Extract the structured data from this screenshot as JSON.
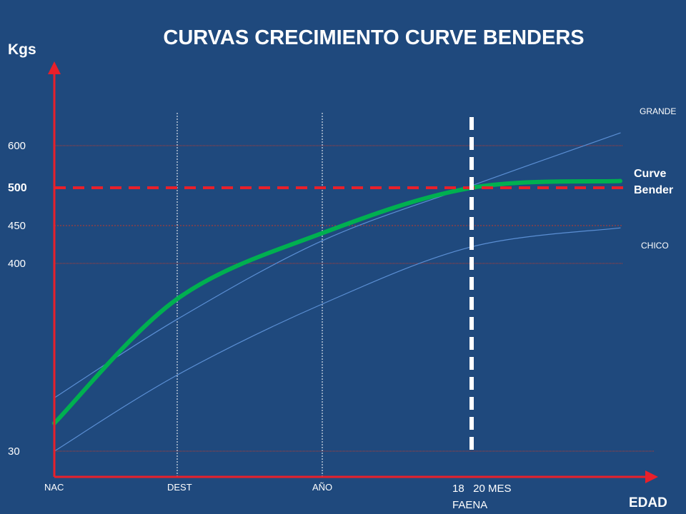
{
  "chart_data": {
    "type": "line",
    "title": "CURVAS CRECIMIENTO CURVE  BENDERS",
    "ylabel": "Kgs",
    "xlabel": "EDAD",
    "y_ticks": [
      {
        "value": 30,
        "label": "30"
      },
      {
        "value": 400,
        "label": "400"
      },
      {
        "value": 450,
        "label": "450"
      },
      {
        "value": 500,
        "label": "500"
      },
      {
        "value": 600,
        "label": "600"
      }
    ],
    "x_ticks": [
      {
        "id": "nac",
        "label": "NAC"
      },
      {
        "id": "dest",
        "label": "DEST"
      },
      {
        "id": "ano",
        "label": "AÑO"
      }
    ],
    "faena": {
      "months": "18   20 MES",
      "label": "FAENA"
    },
    "reference_line": {
      "value": 500,
      "color": "#e8202a",
      "style": "dashed"
    },
    "series": [
      {
        "name": "GRANDE",
        "color": "#5b8fd4",
        "points": [
          [
            0,
            135
          ],
          [
            1,
            290
          ],
          [
            2,
            430
          ],
          [
            3,
            505
          ],
          [
            4,
            633
          ]
        ]
      },
      {
        "name": "Curve\nBender",
        "color": "#00b050",
        "points": [
          [
            0,
            85
          ],
          [
            1,
            330
          ],
          [
            2,
            440
          ],
          [
            3,
            500
          ],
          [
            4,
            516
          ]
        ]
      },
      {
        "name": "CHICO",
        "color": "#5b8fd4",
        "points": [
          [
            0,
            30
          ],
          [
            1,
            180
          ],
          [
            2,
            320
          ],
          [
            3,
            422
          ],
          [
            4,
            447
          ]
        ]
      }
    ]
  }
}
